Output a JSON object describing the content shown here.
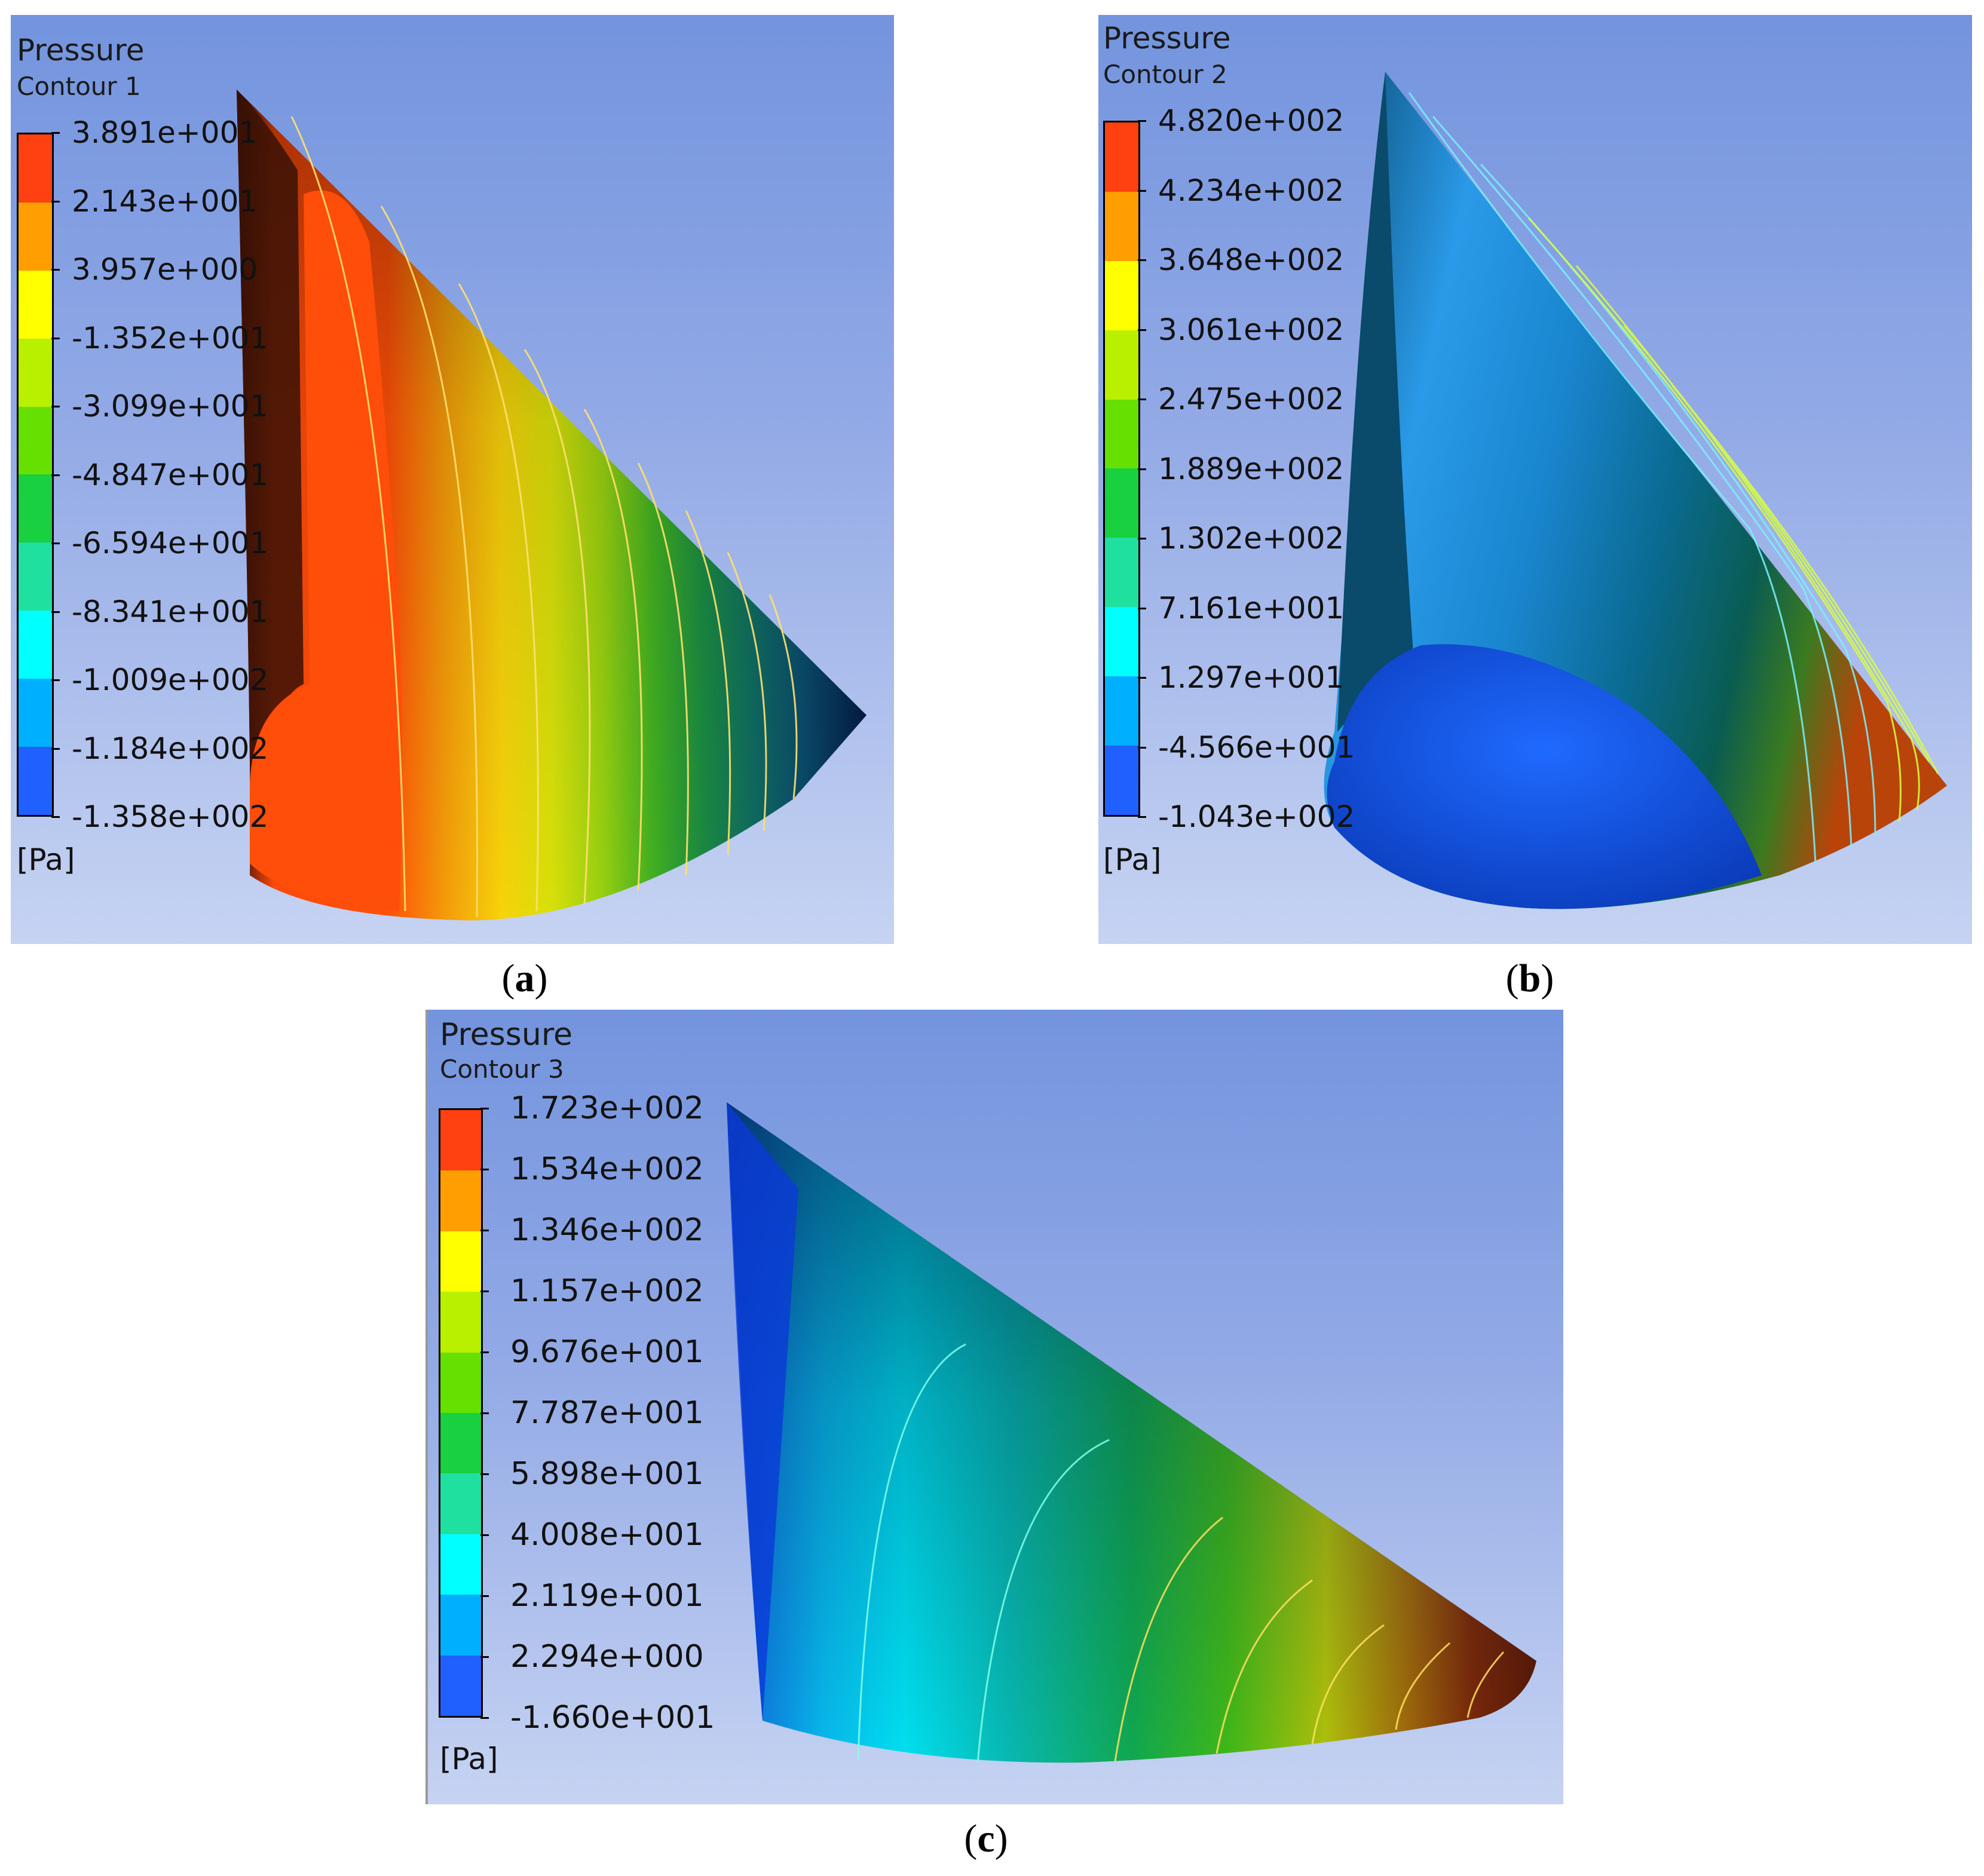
{
  "colors": {
    "background_top": "#7394de",
    "background_bottom": "#c6d3f2",
    "legend_scale": [
      "#ff4010",
      "#ff9e00",
      "#ffff00",
      "#b8f000",
      "#66e000",
      "#18d040",
      "#20e0a0",
      "#00ffff",
      "#00b0ff",
      "#2060ff",
      "#0030ff"
    ]
  },
  "panels": [
    {
      "id": "a",
      "variable": "Pressure",
      "contour": "Contour 1",
      "unit": "[Pa]",
      "levels": [
        "3.891e+001",
        "2.143e+001",
        "3.957e+000",
        "-1.352e+001",
        "-3.099e+001",
        "-4.847e+001",
        "-6.594e+001",
        "-8.341e+001",
        "-1.009e+002",
        "-1.184e+002",
        "-1.358e+002"
      ],
      "caption": "a"
    },
    {
      "id": "b",
      "variable": "Pressure",
      "contour": "Contour 2",
      "unit": "[Pa]",
      "levels": [
        "4.820e+002",
        "4.234e+002",
        "3.648e+002",
        "3.061e+002",
        "2.475e+002",
        "1.889e+002",
        "1.302e+002",
        "7.161e+001",
        "1.297e+001",
        "-4.566e+001",
        "-1.043e+002"
      ],
      "caption": "b"
    },
    {
      "id": "c",
      "variable": "Pressure",
      "contour": "Contour 3",
      "unit": "[Pa]",
      "levels": [
        "1.723e+002",
        "1.534e+002",
        "1.346e+002",
        "1.157e+002",
        "9.676e+001",
        "7.787e+001",
        "5.898e+001",
        "4.008e+001",
        "2.119e+001",
        "2.294e+000",
        "-1.660e+001"
      ],
      "caption": "c"
    }
  ]
}
